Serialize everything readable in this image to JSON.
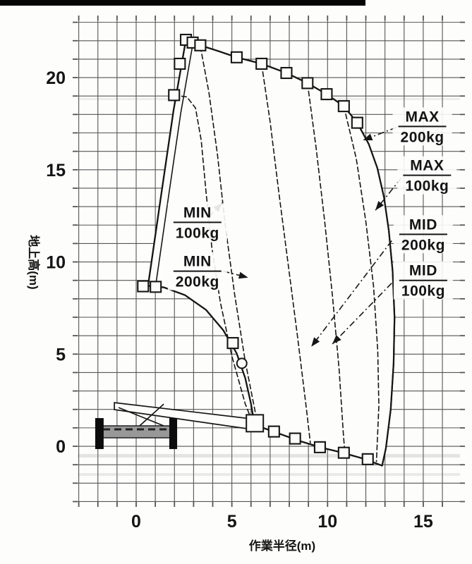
{
  "page": {
    "kind": "scanned crane working-range diagram",
    "top_scan_bar_color": "#050505",
    "ink_color": "#161616",
    "paper_color": "#fdfdfc"
  },
  "chart_data": {
    "type": "line",
    "xlabel": "作業半径(m)",
    "ylabel": "地上高(m)",
    "xlim": [
      -3.06,
      16.92
    ],
    "ylim": [
      -3.02,
      23.1
    ],
    "grid": "1 m square grid, tick stubs on all edges",
    "x_ticks": [
      0,
      5,
      10,
      15
    ],
    "y_ticks": [
      0,
      5,
      10,
      15,
      20
    ],
    "series": [
      {
        "name": "boom-up-limit",
        "points": [
          [
            0.62,
            8.7
          ],
          [
            1.3,
            13.6
          ],
          [
            1.95,
            18.2
          ],
          [
            2.6,
            22.05
          ]
        ]
      },
      {
        "name": "max-100kg-envelope",
        "points": [
          [
            2.6,
            22.05
          ],
          [
            3.35,
            21.75
          ],
          [
            4.25,
            21.45
          ],
          [
            5.25,
            21.1
          ],
          [
            6.55,
            20.75
          ],
          [
            7.85,
            20.25
          ],
          [
            8.95,
            19.7
          ],
          [
            9.95,
            19.1
          ],
          [
            10.85,
            18.45
          ],
          [
            11.55,
            17.55
          ],
          [
            12.15,
            16.4
          ],
          [
            12.6,
            15.1
          ],
          [
            12.95,
            13.5
          ],
          [
            13.2,
            11.7
          ],
          [
            13.4,
            9.5
          ],
          [
            13.5,
            7.0
          ],
          [
            13.45,
            4.5
          ],
          [
            13.3,
            2.0
          ],
          [
            13.05,
            -0.1
          ],
          [
            12.85,
            -1.05
          ]
        ]
      },
      {
        "name": "boom-down-limit",
        "points": [
          [
            12.85,
            -1.05
          ],
          [
            11.9,
            -0.68
          ],
          [
            10.8,
            -0.35
          ],
          [
            9.7,
            -0.08
          ],
          [
            8.5,
            0.3
          ],
          [
            7.3,
            0.75
          ],
          [
            6.5,
            1.05
          ],
          [
            6.18,
            1.2
          ]
        ]
      },
      {
        "name": "min-200kg-curve",
        "points": [
          [
            6.18,
            1.2
          ],
          [
            6.0,
            2.3
          ],
          [
            5.7,
            3.7
          ],
          [
            5.25,
            5.05
          ],
          [
            4.55,
            6.3
          ],
          [
            3.65,
            7.4
          ],
          [
            2.55,
            8.2
          ],
          [
            1.45,
            8.62
          ],
          [
            0.62,
            8.7
          ]
        ]
      },
      {
        "name": "mid-up-limit",
        "points": [
          [
            1.95,
            19.05
          ],
          [
            2.65,
            18.95
          ],
          [
            3.1,
            18.35
          ],
          [
            3.4,
            16.6
          ],
          [
            3.65,
            13.8
          ],
          [
            3.95,
            10.8
          ],
          [
            4.4,
            7.8
          ],
          [
            5.0,
            4.9
          ],
          [
            5.7,
            2.3
          ],
          [
            6.1,
            1.25
          ]
        ]
      },
      {
        "name": "min-100kg-curve",
        "points": [
          [
            3.35,
            21.7
          ],
          [
            3.8,
            19.2
          ],
          [
            4.25,
            15.8
          ],
          [
            4.65,
            12.0
          ],
          [
            5.15,
            8.2
          ],
          [
            5.7,
            4.6
          ],
          [
            6.3,
            1.45
          ],
          [
            6.45,
            1.05
          ]
        ]
      },
      {
        "name": "mid-200kg-curve",
        "points": [
          [
            6.55,
            20.75
          ],
          [
            7.0,
            17.6
          ],
          [
            7.45,
            13.8
          ],
          [
            7.95,
            9.8
          ],
          [
            8.45,
            5.8
          ],
          [
            8.9,
            2.0
          ],
          [
            9.1,
            0.17
          ]
        ]
      },
      {
        "name": "mid-100kg-curve",
        "points": [
          [
            8.95,
            19.7
          ],
          [
            9.4,
            16.2
          ],
          [
            9.85,
            12.2
          ],
          [
            10.25,
            8.2
          ],
          [
            10.6,
            4.2
          ],
          [
            10.83,
            0.6
          ],
          [
            10.9,
            -0.32
          ]
        ]
      },
      {
        "name": "max-200kg-curve",
        "points": [
          [
            10.85,
            18.45
          ],
          [
            11.5,
            15.6
          ],
          [
            12.0,
            12.2
          ],
          [
            12.4,
            8.7
          ],
          [
            12.62,
            5.2
          ],
          [
            12.68,
            2.2
          ],
          [
            12.55,
            -0.85
          ]
        ]
      }
    ],
    "region_outline_order": [
      "boom-up-limit",
      "max-100kg-envelope",
      "boom-down-limit",
      "min-200kg-curve"
    ],
    "joint_markers": [
      [
        2.6,
        22.05
      ],
      [
        2.95,
        21.9
      ],
      [
        3.35,
        21.75
      ],
      [
        5.25,
        21.1
      ],
      [
        6.55,
        20.75
      ],
      [
        7.85,
        20.25
      ],
      [
        8.95,
        19.7
      ],
      [
        9.95,
        19.1
      ],
      [
        10.85,
        18.45
      ],
      [
        11.55,
        17.55
      ],
      [
        2.28,
        20.75
      ],
      [
        1.98,
        19.05
      ],
      [
        0.36,
        8.68
      ],
      [
        1.02,
        8.65
      ],
      [
        5.05,
        5.6
      ],
      [
        7.2,
        0.8
      ],
      [
        8.3,
        0.42
      ],
      [
        9.6,
        -0.05
      ],
      [
        10.85,
        -0.35
      ],
      [
        12.1,
        -0.7
      ]
    ],
    "hook_marker": {
      "x": 5.52,
      "y": 4.5
    },
    "boom_head_marker": {
      "x": 6.2,
      "y": 1.25
    },
    "labels": [
      {
        "id": "max-200kg",
        "line1": "MAX",
        "line2": "200kg",
        "x": 14.95,
        "y": 17.35,
        "leader": [
          [
            13.6,
            17.3
          ],
          [
            11.85,
            16.6
          ]
        ]
      },
      {
        "id": "max-100kg",
        "line1": "MAX",
        "line2": "100kg",
        "x": 15.2,
        "y": 14.7,
        "leader": [
          [
            13.85,
            14.55
          ],
          [
            12.5,
            12.8
          ]
        ]
      },
      {
        "id": "mid-200kg",
        "line1": "MID",
        "line2": "200kg",
        "x": 15.0,
        "y": 11.5,
        "leader": [
          [
            13.35,
            11.15
          ],
          [
            9.15,
            5.4
          ]
        ]
      },
      {
        "id": "mid-100kg",
        "line1": "MID",
        "line2": "100kg",
        "x": 15.0,
        "y": 9.0,
        "leader": [
          [
            13.35,
            8.85
          ],
          [
            10.25,
            5.55
          ]
        ]
      },
      {
        "id": "min-100kg",
        "line1": "MIN",
        "line2": "100kg",
        "x": 3.2,
        "y": 12.15,
        "leader": [
          [
            3.8,
            12.45
          ],
          [
            4.5,
            13.2
          ]
        ]
      },
      {
        "id": "min-200kg",
        "line1": "MIN",
        "line2": "200kg",
        "x": 3.2,
        "y": 9.5,
        "leader": [
          [
            4.55,
            9.5
          ],
          [
            5.85,
            9.15
          ]
        ]
      }
    ],
    "machine": {
      "body": {
        "x1": -1.88,
        "y1": 0.46,
        "x2": 1.84,
        "y2": 1.11
      },
      "outrigger_left": {
        "x1": -2.14,
        "y1": -0.15,
        "x2": -1.7,
        "y2": 1.53
      },
      "outrigger_right": {
        "x1": 1.73,
        "y1": -0.15,
        "x2": 2.14,
        "y2": 1.53
      },
      "boom_quad": [
        [
          -1.14,
          2.37
        ],
        [
          6.04,
          1.49
        ],
        [
          6.04,
          0.92
        ],
        [
          -1.14,
          1.99
        ]
      ],
      "aframe": [
        [
          [
            -0.92,
            2.1
          ],
          [
            1.44,
            1.11
          ]
        ],
        [
          [
            1.44,
            2.29
          ],
          [
            0.18,
            1.11
          ]
        ]
      ]
    }
  }
}
